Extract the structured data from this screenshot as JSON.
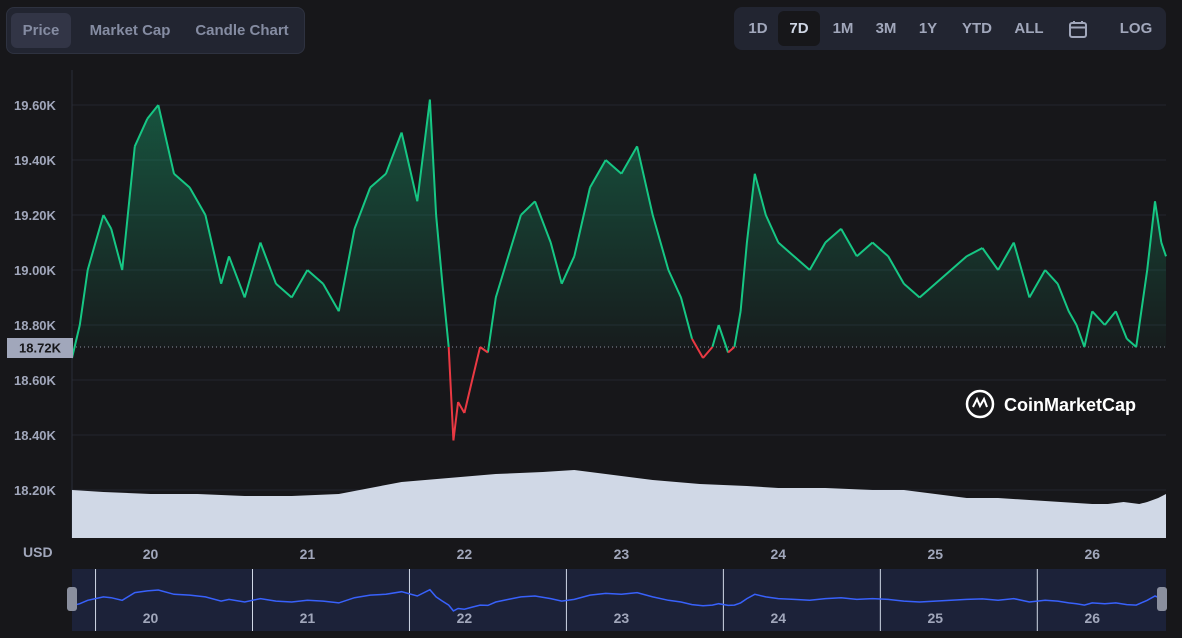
{
  "tabs": [
    {
      "label": "Price",
      "active": true
    },
    {
      "label": "Market Cap",
      "active": false
    },
    {
      "label": "Candle Chart",
      "active": false
    }
  ],
  "ranges": [
    {
      "label": "1D",
      "active": false
    },
    {
      "label": "7D",
      "active": true
    },
    {
      "label": "1M",
      "active": false
    },
    {
      "label": "3M",
      "active": false
    },
    {
      "label": "1Y",
      "active": false
    },
    {
      "label": "YTD",
      "active": false
    },
    {
      "label": "ALL",
      "active": false
    }
  ],
  "calendar_icon": "calendar-icon",
  "log_label": "LOG",
  "brand": "CoinMarketCap",
  "colors": {
    "up": "#16c784",
    "down": "#ea3943",
    "volume": "#d0d8e6",
    "navigator": "#3861fb"
  },
  "chart_data": {
    "type": "line",
    "currency_label": "USD",
    "current_price_label": "18.72K",
    "baseline": 18720,
    "ylim": [
      18200,
      19600
    ],
    "yticks": [
      {
        "value": 19600,
        "label": "19.60K"
      },
      {
        "value": 19400,
        "label": "19.40K"
      },
      {
        "value": 19200,
        "label": "19.20K"
      },
      {
        "value": 19000,
        "label": "19.00K"
      },
      {
        "value": 18800,
        "label": "18.80K"
      },
      {
        "value": 18600,
        "label": "18.60K"
      },
      {
        "value": 18400,
        "label": "18.40K"
      },
      {
        "value": 18200,
        "label": "18.20K"
      }
    ],
    "xlim": [
      19.5,
      26.47
    ],
    "xticks": [
      {
        "value": 20,
        "label": "20"
      },
      {
        "value": 21,
        "label": "21"
      },
      {
        "value": 22,
        "label": "22"
      },
      {
        "value": 23,
        "label": "23"
      },
      {
        "value": 24,
        "label": "24"
      },
      {
        "value": 25,
        "label": "25"
      },
      {
        "value": 26,
        "label": "26"
      }
    ],
    "x": [
      19.5,
      19.55,
      19.6,
      19.65,
      19.7,
      19.75,
      19.82,
      19.9,
      19.98,
      20.05,
      20.15,
      20.25,
      20.35,
      20.45,
      20.5,
      20.6,
      20.7,
      20.8,
      20.9,
      21.0,
      21.1,
      21.2,
      21.3,
      21.4,
      21.5,
      21.6,
      21.7,
      21.78,
      21.82,
      21.86,
      21.9,
      21.93,
      21.96,
      22.0,
      22.05,
      22.1,
      22.15,
      22.2,
      22.28,
      22.36,
      22.45,
      22.55,
      22.62,
      22.7,
      22.8,
      22.9,
      23.0,
      23.1,
      23.2,
      23.3,
      23.38,
      23.45,
      23.52,
      23.58,
      23.62,
      23.68,
      23.72,
      23.76,
      23.8,
      23.85,
      23.92,
      24.0,
      24.1,
      24.2,
      24.3,
      24.4,
      24.5,
      24.6,
      24.7,
      24.8,
      24.9,
      25.0,
      25.1,
      25.2,
      25.3,
      25.4,
      25.5,
      25.6,
      25.7,
      25.78,
      25.85,
      25.9,
      25.95,
      26.0,
      26.08,
      26.15,
      26.22,
      26.28,
      26.35,
      26.4,
      26.44,
      26.47
    ],
    "y": [
      18680,
      18800,
      19000,
      19100,
      19200,
      19150,
      19000,
      19450,
      19550,
      19600,
      19350,
      19300,
      19200,
      18950,
      19050,
      18900,
      19100,
      18950,
      18900,
      19000,
      18950,
      18850,
      19150,
      19300,
      19350,
      19500,
      19250,
      19620,
      19200,
      18950,
      18720,
      18380,
      18520,
      18480,
      18600,
      18720,
      18700,
      18900,
      19050,
      19200,
      19250,
      19100,
      18950,
      19050,
      19300,
      19400,
      19350,
      19450,
      19200,
      19000,
      18900,
      18750,
      18680,
      18720,
      18800,
      18700,
      18720,
      18850,
      19100,
      19350,
      19200,
      19100,
      19050,
      19000,
      19100,
      19150,
      19050,
      19100,
      19050,
      18950,
      18900,
      18950,
      19000,
      19050,
      19080,
      19000,
      19100,
      18900,
      19000,
      18950,
      18850,
      18800,
      18720,
      18850,
      18800,
      18850,
      18750,
      18720,
      19000,
      19250,
      19100,
      19050
    ],
    "volume_level": [
      0.24,
      0.23,
      0.22,
      0.22,
      0.21,
      0.21,
      0.22,
      0.28,
      0.3,
      0.32,
      0.33,
      0.34,
      0.32,
      0.29,
      0.27,
      0.26,
      0.25,
      0.25,
      0.24,
      0.24,
      0.22,
      0.2,
      0.2,
      0.19,
      0.18,
      0.17,
      0.17,
      0.18,
      0.17,
      0.18,
      0.2,
      0.22
    ],
    "volume_x": [
      19.5,
      19.7,
      20.0,
      20.3,
      20.6,
      20.9,
      21.2,
      21.6,
      21.9,
      22.2,
      22.5,
      22.7,
      22.9,
      23.2,
      23.5,
      23.8,
      24.0,
      24.3,
      24.6,
      24.8,
      25.0,
      25.2,
      25.4,
      25.6,
      25.8,
      26.0,
      26.1,
      26.2,
      26.3,
      26.35,
      26.42,
      26.47
    ]
  }
}
